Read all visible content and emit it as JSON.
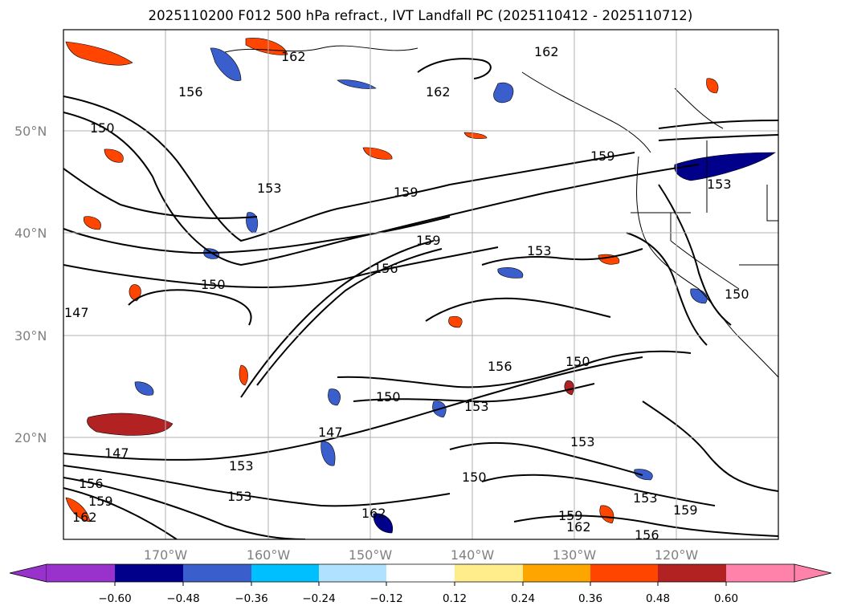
{
  "title": "2025110200 F012 500 hPa refract., IVT Landfall PC (2025110412 - 2025110712)",
  "map": {
    "lat_labels": [
      {
        "text": "50°N",
        "lat": 50
      },
      {
        "text": "40°N",
        "lat": 40
      },
      {
        "text": "30°N",
        "lat": 30
      },
      {
        "text": "20°N",
        "lat": 20
      }
    ],
    "lon_labels": [
      {
        "text": "170°W",
        "lon": -170
      },
      {
        "text": "160°W",
        "lon": -160
      },
      {
        "text": "150°W",
        "lon": -150
      },
      {
        "text": "140°W",
        "lon": -140
      },
      {
        "text": "130°W",
        "lon": -130
      },
      {
        "text": "120°W",
        "lon": -120
      }
    ],
    "contour_labels": [
      "162",
      "162",
      "156",
      "150",
      "153",
      "162",
      "159",
      "159",
      "153",
      "156",
      "159",
      "153",
      "150",
      "147",
      "150",
      "156",
      "150",
      "153",
      "150",
      "147",
      "153",
      "156",
      "159",
      "162",
      "153",
      "150",
      "162",
      "147",
      "153",
      "153",
      "159",
      "159",
      "162",
      "156"
    ],
    "grid": true
  },
  "colorbar": {
    "ticks": [
      "−0.60",
      "−0.48",
      "−0.36",
      "−0.24",
      "−0.12",
      "0.12",
      "0.24",
      "0.36",
      "0.48",
      "0.60"
    ],
    "colors": [
      "#9932cc",
      "#00008b",
      "#3a5fcd",
      "#00bfff",
      "#b0e2ff",
      "#ffffff",
      "#ffec8b",
      "#ffa500",
      "#ff4500",
      "#b22222",
      "#ff82ab"
    ]
  }
}
